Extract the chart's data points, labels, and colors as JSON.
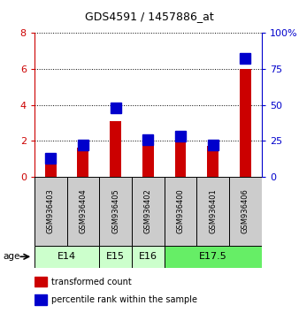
{
  "title": "GDS4591 / 1457886_at",
  "samples": [
    "GSM936403",
    "GSM936404",
    "GSM936405",
    "GSM936402",
    "GSM936400",
    "GSM936401",
    "GSM936406"
  ],
  "transformed_count": [
    1.0,
    1.6,
    3.1,
    2.0,
    2.1,
    1.7,
    6.0
  ],
  "percentile_rank": [
    13,
    22,
    48,
    26,
    28,
    22,
    82
  ],
  "age_groups": [
    {
      "label": "E14",
      "samples": [
        0,
        1
      ],
      "color": "#ccffcc"
    },
    {
      "label": "E15",
      "samples": [
        2
      ],
      "color": "#ccffcc"
    },
    {
      "label": "E16",
      "samples": [
        3
      ],
      "color": "#ccffcc"
    },
    {
      "label": "E17.5",
      "samples": [
        4,
        5,
        6
      ],
      "color": "#66ee66"
    }
  ],
  "bar_color_red": "#cc0000",
  "bar_color_blue": "#0000cc",
  "ylim_left": [
    0,
    8
  ],
  "ylim_right": [
    0,
    100
  ],
  "yticks_left": [
    0,
    2,
    4,
    6,
    8
  ],
  "yticks_right": [
    0,
    25,
    50,
    75,
    100
  ],
  "yticklabels_right": [
    "0",
    "25",
    "50",
    "75",
    "100%"
  ],
  "legend_red": "transformed count",
  "legend_blue": "percentile rank within the sample",
  "age_label": "age",
  "sample_box_color": "#cccccc",
  "left_axis_color": "#cc0000",
  "right_axis_color": "#0000cc",
  "fig_width": 3.38,
  "fig_height": 3.54
}
